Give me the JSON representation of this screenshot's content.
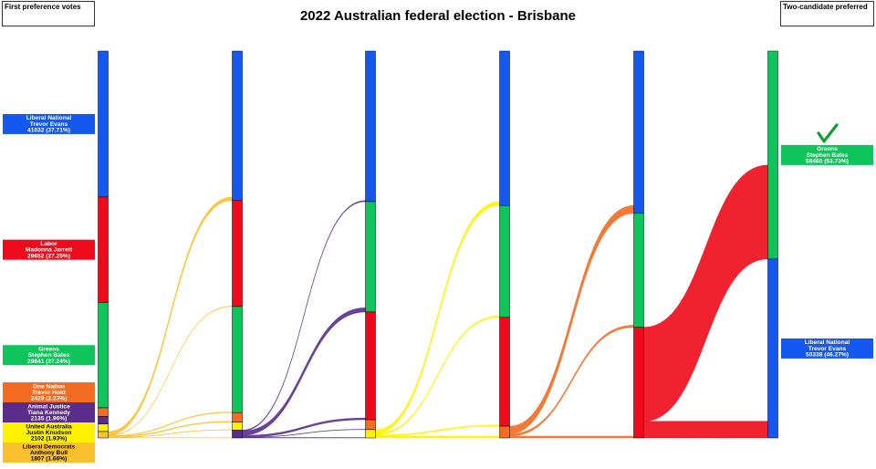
{
  "chart_data": {
    "type": "sankey",
    "title": "2022 Australian federal election - Brisbane",
    "left_heading": "First preference votes",
    "right_heading": "Two-candidate preferred",
    "candidates": [
      {
        "party": "Liberal National",
        "name": "Trevor Evans",
        "color": "#1558f0"
      },
      {
        "party": "Labor",
        "name": "Madonna Jarrett",
        "color": "#ee0a1a"
      },
      {
        "party": "Greens",
        "name": "Stephen Bates",
        "color": "#10c45c"
      },
      {
        "party": "One Nation",
        "name": "Trevor Hold",
        "color": "#f36c21"
      },
      {
        "party": "Animal Justice",
        "name": "Tiana Kennedy",
        "color": "#5a2d8c"
      },
      {
        "party": "United Australia",
        "name": "Justin Knudson",
        "color": "#fff200"
      },
      {
        "party": "Liberal Democrats",
        "name": "Anthony Bull",
        "color": "#fbc02d"
      }
    ],
    "stages": [
      {
        "candidates": [
          "Liberal National",
          "Labor",
          "Greens",
          "One Nation",
          "Animal Justice",
          "United Australia",
          "Liberal Democrats"
        ],
        "values": [
          41032,
          29652,
          29641,
          2429,
          2135,
          2102,
          1807
        ],
        "value_labels": [
          "41032 (37.71%)",
          "29652 (27.25%)",
          "29641 (27.24%)",
          "2429 (2.23%)",
          "2135 (1.96%)",
          "2102 (1.93%)",
          "1807 (1.66%)"
        ]
      },
      {
        "candidates": [
          "Liberal National",
          "Labor",
          "Greens",
          "One Nation",
          "United Australia",
          "Animal Justice"
        ],
        "values": [
          42032,
          29802,
          29841,
          2679,
          2209,
          2235
        ]
      },
      {
        "candidates": [
          "Liberal National",
          "Greens",
          "Labor",
          "One Nation",
          "United Australia"
        ],
        "values": [
          42332,
          31041,
          30302,
          2779,
          2344
        ]
      },
      {
        "candidates": [
          "Liberal National",
          "Greens",
          "Labor",
          "One Nation"
        ],
        "values": [
          43432,
          31441,
          30602,
          3323
        ]
      },
      {
        "candidates": [
          "Liberal National",
          "Greens",
          "Labor"
        ],
        "values": [
          45632,
          32041,
          31125
        ]
      },
      {
        "candidates": [
          "Greens",
          "Liberal National"
        ],
        "values": [
          58460,
          50338
        ],
        "value_labels": [
          "58460 (53.73%)",
          "50338 (46.27%)"
        ]
      }
    ],
    "winner": "Greens",
    "flows": [
      {
        "stage": 0,
        "from": "Liberal Democrats",
        "to": "Liberal National",
        "value": 1000
      },
      {
        "stage": 0,
        "from": "Liberal Democrats",
        "to": "Labor",
        "value": 150
      },
      {
        "stage": 0,
        "from": "Liberal Democrats",
        "to": "Greens",
        "value": 200
      },
      {
        "stage": 0,
        "from": "Liberal Democrats",
        "to": "One Nation",
        "value": 250
      },
      {
        "stage": 0,
        "from": "Liberal Democrats",
        "to": "United Australia",
        "value": 107
      },
      {
        "stage": 0,
        "from": "Liberal Democrats",
        "to": "Animal Justice",
        "value": 100
      },
      {
        "stage": 1,
        "from": "Animal Justice",
        "to": "Liberal National",
        "value": 300
      },
      {
        "stage": 1,
        "from": "Animal Justice",
        "to": "Greens",
        "value": 1200
      },
      {
        "stage": 1,
        "from": "Animal Justice",
        "to": "Labor",
        "value": 500
      },
      {
        "stage": 1,
        "from": "Animal Justice",
        "to": "One Nation",
        "value": 100
      },
      {
        "stage": 1,
        "from": "Animal Justice",
        "to": "United Australia",
        "value": 135
      },
      {
        "stage": 2,
        "from": "United Australia",
        "to": "Liberal National",
        "value": 1100
      },
      {
        "stage": 2,
        "from": "United Australia",
        "to": "Greens",
        "value": 400
      },
      {
        "stage": 2,
        "from": "United Australia",
        "to": "Labor",
        "value": 300
      },
      {
        "stage": 2,
        "from": "United Australia",
        "to": "One Nation",
        "value": 544
      },
      {
        "stage": 3,
        "from": "One Nation",
        "to": "Liberal National",
        "value": 2200
      },
      {
        "stage": 3,
        "from": "One Nation",
        "to": "Greens",
        "value": 600
      },
      {
        "stage": 3,
        "from": "One Nation",
        "to": "Labor",
        "value": 523
      },
      {
        "stage": 4,
        "from": "Labor",
        "to": "Greens",
        "value": 26419
      },
      {
        "stage": 4,
        "from": "Labor",
        "to": "Liberal National",
        "value": 4706
      }
    ]
  }
}
